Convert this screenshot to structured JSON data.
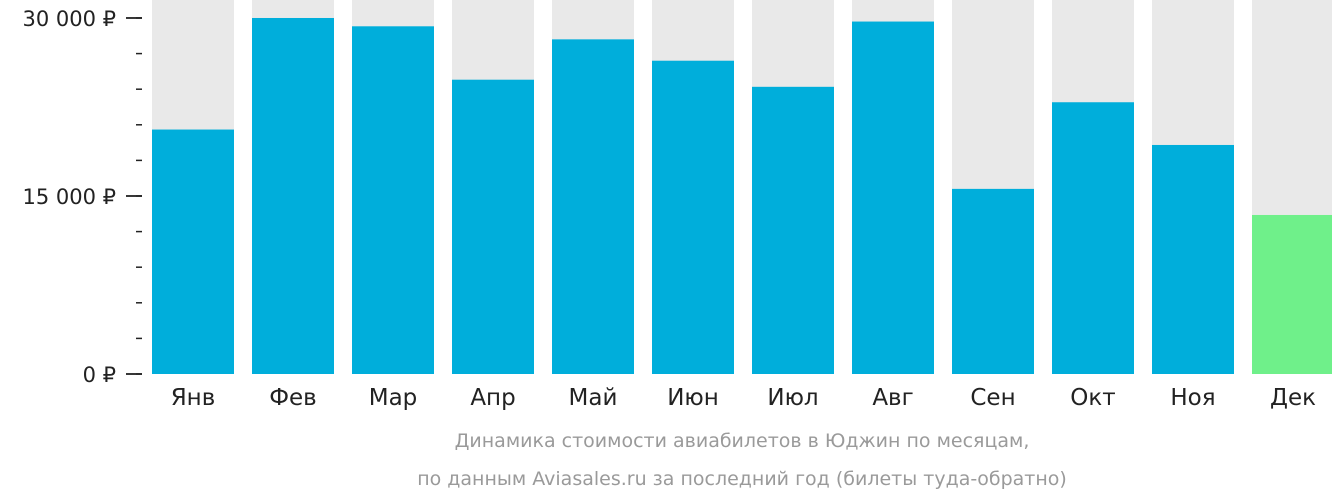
{
  "chart_data": {
    "type": "bar",
    "categories": [
      "Янв",
      "Фев",
      "Мар",
      "Апр",
      "Май",
      "Июн",
      "Июл",
      "Авг",
      "Сен",
      "Окт",
      "Ноя",
      "Дек"
    ],
    "values": [
      20600,
      30000,
      29300,
      24800,
      28200,
      26400,
      24200,
      29700,
      15600,
      22900,
      19300,
      13400
    ],
    "ylim": [
      0,
      31000
    ],
    "y_ticks": [
      {
        "value": 0,
        "label": "0 ₽"
      },
      {
        "value": 15000,
        "label": "15 000 ₽"
      },
      {
        "value": 30000,
        "label": "30 000 ₽"
      }
    ],
    "minor_tick_step": 3000,
    "highlight_index": 11,
    "title": "Динамика стоимости авиабилетов в Юджин по месяцам,",
    "subtitle": "по данным Aviasales.ru за последний год (билеты туда-обратно)",
    "grid": false
  },
  "colors": {
    "bar": "#00aedb",
    "highlight": "#6ff08a",
    "background_bar": "#e9e9e9",
    "axis": "#222222",
    "caption": "#9a9a9a"
  }
}
